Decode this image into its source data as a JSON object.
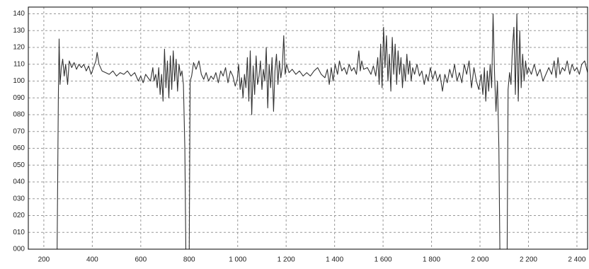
{
  "chart_data": {
    "type": "line",
    "color": "#333333",
    "grid": true,
    "xlim": [
      136,
      2444
    ],
    "ylim": [
      0,
      144
    ],
    "xticks": [
      200,
      400,
      600,
      800,
      {
        "value": 1000,
        "label": "1 000"
      },
      {
        "value": 1200,
        "label": "1 200"
      },
      {
        "value": 1400,
        "label": "1 400"
      },
      {
        "value": 1600,
        "label": "1 600"
      },
      {
        "value": 1800,
        "label": "1 800"
      },
      {
        "value": 2000,
        "label": "2 000"
      },
      {
        "value": 2200,
        "label": "2 200"
      },
      {
        "value": 2400,
        "label": "2 400"
      }
    ],
    "yticks": [
      {
        "value": 0,
        "label": "000"
      },
      {
        "value": 10,
        "label": "010"
      },
      {
        "value": 20,
        "label": "020"
      },
      {
        "value": 30,
        "label": "030"
      },
      {
        "value": 40,
        "label": "040"
      },
      {
        "value": 50,
        "label": "050"
      },
      {
        "value": 60,
        "label": "060"
      },
      {
        "value": 70,
        "label": "070"
      },
      {
        "value": 80,
        "label": "080"
      },
      {
        "value": 90,
        "label": "090"
      },
      100,
      110,
      120,
      130,
      140
    ],
    "x": [
      255,
      260,
      263,
      267,
      272,
      278,
      284,
      290,
      298,
      305,
      315,
      325,
      335,
      345,
      355,
      365,
      375,
      385,
      395,
      405,
      415,
      420,
      428,
      440,
      455,
      470,
      485,
      500,
      515,
      530,
      545,
      560,
      575,
      590,
      600,
      610,
      620,
      630,
      640,
      650,
      655,
      662,
      668,
      674,
      680,
      686,
      692,
      698,
      704,
      710,
      716,
      722,
      728,
      734,
      740,
      746,
      752,
      758,
      764,
      770,
      776,
      782,
      786,
      800,
      804,
      810,
      818,
      828,
      840,
      850,
      860,
      870,
      880,
      890,
      900,
      910,
      920,
      930,
      940,
      950,
      960,
      970,
      980,
      990,
      998,
      1004,
      1010,
      1016,
      1022,
      1028,
      1034,
      1040,
      1046,
      1052,
      1058,
      1064,
      1070,
      1076,
      1082,
      1088,
      1094,
      1100,
      1106,
      1112,
      1118,
      1124,
      1130,
      1136,
      1142,
      1148,
      1154,
      1160,
      1166,
      1172,
      1178,
      1184,
      1190,
      1196,
      1202,
      1212,
      1225,
      1240,
      1255,
      1270,
      1285,
      1300,
      1315,
      1330,
      1345,
      1360,
      1370,
      1378,
      1386,
      1394,
      1402,
      1412,
      1420,
      1430,
      1440,
      1450,
      1460,
      1470,
      1480,
      1490,
      1500,
      1506,
      1512,
      1520,
      1535,
      1550,
      1560,
      1570,
      1578,
      1584,
      1590,
      1596,
      1602,
      1608,
      1614,
      1620,
      1626,
      1632,
      1638,
      1644,
      1650,
      1656,
      1662,
      1668,
      1674,
      1680,
      1686,
      1692,
      1698,
      1704,
      1710,
      1716,
      1722,
      1730,
      1740,
      1750,
      1760,
      1770,
      1778,
      1786,
      1795,
      1805,
      1815,
      1825,
      1835,
      1845,
      1855,
      1865,
      1875,
      1885,
      1895,
      1905,
      1915,
      1925,
      1935,
      1945,
      1955,
      1965,
      1975,
      1985,
      1995,
      2005,
      2012,
      2018,
      2024,
      2030,
      2036,
      2042,
      2048,
      2054,
      2060,
      2066,
      2072,
      2078,
      2082,
      2112,
      2116,
      2122,
      2128,
      2134,
      2140,
      2146,
      2152,
      2158,
      2164,
      2170,
      2176,
      2182,
      2188,
      2194,
      2200,
      2212,
      2224,
      2236,
      2248,
      2260,
      2272,
      2284,
      2296,
      2306,
      2314,
      2322,
      2330,
      2340,
      2350,
      2360,
      2370,
      2380,
      2390,
      2400,
      2410,
      2420,
      2432,
      2444
    ],
    "values": [
      0,
      90,
      125,
      98,
      108,
      113,
      103,
      110,
      98,
      112,
      108,
      111,
      107,
      110,
      108,
      110,
      106,
      109,
      104,
      108,
      112,
      117,
      110,
      106,
      105,
      104,
      106,
      103,
      105,
      104,
      106,
      103,
      105,
      100,
      103,
      99,
      104,
      102,
      100,
      108,
      100,
      104,
      96,
      108,
      92,
      104,
      88,
      119,
      96,
      112,
      90,
      115,
      95,
      118,
      100,
      113,
      94,
      110,
      103,
      106,
      98,
      60,
      0,
      0,
      100,
      103,
      111,
      107,
      112,
      104,
      101,
      105,
      100,
      103,
      101,
      105,
      99,
      106,
      103,
      108,
      99,
      106,
      103,
      97,
      101,
      110,
      95,
      102,
      90,
      104,
      96,
      114,
      88,
      118,
      80,
      109,
      92,
      115,
      98,
      103,
      112,
      95,
      107,
      100,
      120,
      84,
      110,
      96,
      114,
      82,
      106,
      116,
      98,
      112,
      102,
      108,
      127,
      104,
      110,
      105,
      107,
      104,
      106,
      103,
      105,
      103,
      106,
      108,
      104,
      102,
      107,
      98,
      108,
      100,
      110,
      104,
      112,
      106,
      108,
      104,
      110,
      106,
      108,
      104,
      118,
      106,
      112,
      107,
      108,
      104,
      109,
      103,
      114,
      98,
      122,
      96,
      132,
      108,
      127,
      100,
      116,
      94,
      126,
      104,
      122,
      98,
      118,
      104,
      114,
      96,
      110,
      100,
      116,
      104,
      112,
      100,
      108,
      104,
      110,
      103,
      106,
      98,
      104,
      100,
      108,
      101,
      106,
      100,
      104,
      94,
      104,
      99,
      107,
      102,
      110,
      100,
      105,
      99,
      110,
      104,
      112,
      96,
      108,
      100,
      95,
      104,
      92,
      108,
      88,
      106,
      94,
      110,
      96,
      140,
      104,
      82,
      100,
      60,
      0,
      0,
      95,
      105,
      98,
      120,
      132,
      92,
      140,
      88,
      130,
      96,
      116,
      100,
      112,
      104,
      108,
      104,
      110,
      103,
      107,
      100,
      104,
      108,
      104,
      112,
      102,
      114,
      104,
      108,
      106,
      112,
      104,
      110,
      106,
      108,
      104,
      110,
      112,
      105
    ]
  }
}
